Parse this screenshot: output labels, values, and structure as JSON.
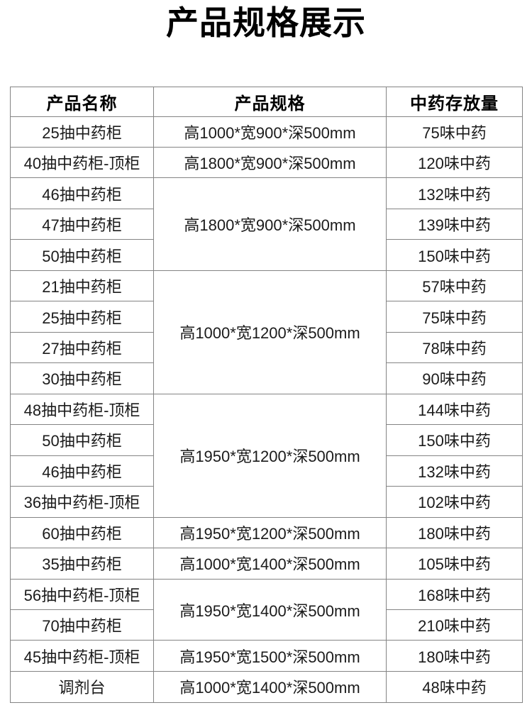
{
  "page": {
    "title": "产品规格展示"
  },
  "table": {
    "headers": [
      "产品名称",
      "产品规格",
      "中药存放量"
    ],
    "rows": [
      {
        "name": "25抽中药柜",
        "spec": "高1000*宽900*深500mm",
        "spec_rowspan": 1,
        "capacity": "75味中药"
      },
      {
        "name": "40抽中药柜-顶柜",
        "spec": "高1800*宽900*深500mm",
        "spec_rowspan": 1,
        "capacity": "120味中药"
      },
      {
        "name": "46抽中药柜",
        "spec": "高1800*宽900*深500mm",
        "spec_rowspan": 3,
        "capacity": "132味中药"
      },
      {
        "name": "47抽中药柜",
        "spec": "",
        "spec_rowspan": 0,
        "capacity": "139味中药"
      },
      {
        "name": "50抽中药柜",
        "spec": "",
        "spec_rowspan": 0,
        "capacity": "150味中药"
      },
      {
        "name": "21抽中药柜",
        "spec": "高1000*宽1200*深500mm",
        "spec_rowspan": 4,
        "capacity": "57味中药"
      },
      {
        "name": "25抽中药柜",
        "spec": "",
        "spec_rowspan": 0,
        "capacity": "75味中药"
      },
      {
        "name": "27抽中药柜",
        "spec": "",
        "spec_rowspan": 0,
        "capacity": "78味中药"
      },
      {
        "name": "30抽中药柜",
        "spec": "",
        "spec_rowspan": 0,
        "capacity": "90味中药"
      },
      {
        "name": "48抽中药柜-顶柜",
        "spec": "高1950*宽1200*深500mm",
        "spec_rowspan": 4,
        "capacity": "144味中药"
      },
      {
        "name": "50抽中药柜",
        "spec": "",
        "spec_rowspan": 0,
        "capacity": "150味中药"
      },
      {
        "name": "46抽中药柜",
        "spec": "",
        "spec_rowspan": 0,
        "capacity": "132味中药"
      },
      {
        "name": "36抽中药柜-顶柜",
        "spec": "",
        "spec_rowspan": 0,
        "capacity": "102味中药"
      },
      {
        "name": "60抽中药柜",
        "spec": "高1950*宽1200*深500mm",
        "spec_rowspan": 1,
        "capacity": "180味中药"
      },
      {
        "name": "35抽中药柜",
        "spec": "高1000*宽1400*深500mm",
        "spec_rowspan": 1,
        "capacity": "105味中药"
      },
      {
        "name": "56抽中药柜-顶柜",
        "spec": "高1950*宽1400*深500mm",
        "spec_rowspan": 2,
        "capacity": "168味中药"
      },
      {
        "name": "70抽中药柜",
        "spec": "",
        "spec_rowspan": 0,
        "capacity": "210味中药"
      },
      {
        "name": "45抽中药柜-顶柜",
        "spec": "高1950*宽1500*深500mm",
        "spec_rowspan": 1,
        "capacity": "180味中药"
      },
      {
        "name": "调剂台",
        "spec": "高1000*宽1400*深500mm",
        "spec_rowspan": 1,
        "capacity": "48味中药"
      }
    ]
  }
}
